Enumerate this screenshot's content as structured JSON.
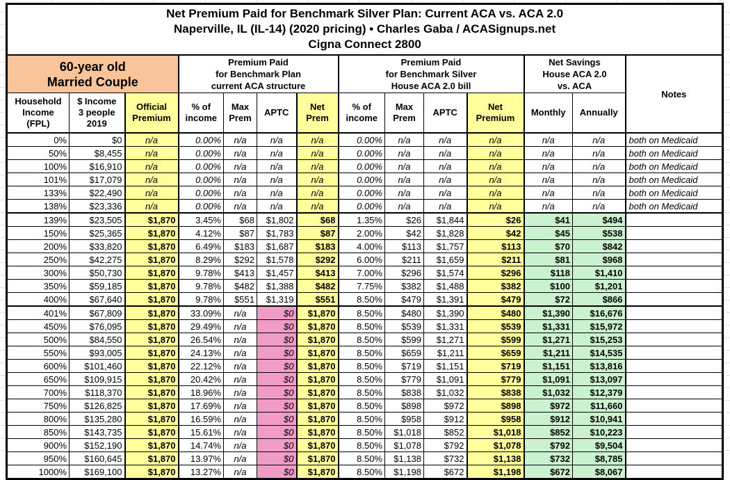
{
  "title": {
    "line1": "Net Premium Paid for Benchmark Silver Plan: Current ACA vs. ACA 2.0",
    "line2": "Naperville, IL (IL-14) (2020 pricing) • Charles Gaba / ACASignups.net",
    "line3": "Cigna Connect 2800"
  },
  "header": {
    "subject": "60-year old\nMarried Couple",
    "groups": [
      {
        "label": "Premium Paid\nfor Benchmark Plan\ncurrent ACA structure"
      },
      {
        "label": "Premium Paid\nfor Benchmark Silver\nHouse ACA 2.0 bill"
      },
      {
        "label": "Net Savings\nHouse ACA 2.0\nvs. ACA"
      }
    ],
    "notes_label": "Notes",
    "columns": [
      "Household\nIncome\n(FPL)",
      "$ Income\n3 people\n2019",
      "Official\nPremium",
      "% of\nincome",
      "Max\nPrem",
      "APTC",
      "Net\nPrem",
      "% of\nincome",
      "Max\nPrem",
      "APTC",
      "Net\nPremium",
      "Monthly",
      "Annually"
    ]
  },
  "colors": {
    "subject_orange": "#F9C499",
    "highlight_yellow": "#FFFF9C",
    "savings_green": "#CBF2CE",
    "zero_aptc_pink": "#F19CC6",
    "border_black": "#000000"
  },
  "rows": [
    {
      "section": "medicaid",
      "cells": [
        "0%",
        "$0",
        "n/a",
        "0.00%",
        "n/a",
        "n/a",
        "n/a",
        "0.00%",
        "n/a",
        "n/a",
        "n/a",
        "n/a",
        "n/a",
        "both on Medicaid"
      ]
    },
    {
      "section": "medicaid",
      "cells": [
        "50%",
        "$8,455",
        "n/a",
        "0.00%",
        "n/a",
        "n/a",
        "n/a",
        "0.00%",
        "n/a",
        "n/a",
        "n/a",
        "n/a",
        "n/a",
        "both on Medicaid"
      ]
    },
    {
      "section": "medicaid",
      "cells": [
        "100%",
        "$16,910",
        "n/a",
        "0.00%",
        "n/a",
        "n/a",
        "n/a",
        "0.00%",
        "n/a",
        "n/a",
        "n/a",
        "n/a",
        "n/a",
        "both on Medicaid"
      ]
    },
    {
      "section": "medicaid",
      "cells": [
        "101%",
        "$17,079",
        "n/a",
        "0.00%",
        "n/a",
        "n/a",
        "n/a",
        "0.00%",
        "n/a",
        "n/a",
        "n/a",
        "n/a",
        "n/a",
        "both on Medicaid"
      ]
    },
    {
      "section": "medicaid",
      "cells": [
        "133%",
        "$22,490",
        "n/a",
        "0.00%",
        "n/a",
        "n/a",
        "n/a",
        "0.00%",
        "n/a",
        "n/a",
        "n/a",
        "n/a",
        "n/a",
        "both on Medicaid"
      ]
    },
    {
      "section": "medicaid",
      "cells": [
        "138%",
        "$23,336",
        "n/a",
        "0.00%",
        "n/a",
        "n/a",
        "n/a",
        "0.00%",
        "n/a",
        "n/a",
        "n/a",
        "n/a",
        "n/a",
        "both on Medicaid"
      ]
    },
    {
      "section": "subsidized",
      "cells": [
        "139%",
        "$23,505",
        "$1,870",
        "3.45%",
        "$68",
        "$1,802",
        "$68",
        "1.35%",
        "$26",
        "$1,844",
        "$26",
        "$41",
        "$494",
        ""
      ]
    },
    {
      "section": "subsidized",
      "cells": [
        "150%",
        "$25,365",
        "$1,870",
        "4.12%",
        "$87",
        "$1,783",
        "$87",
        "2.00%",
        "$42",
        "$1,828",
        "$42",
        "$45",
        "$538",
        ""
      ]
    },
    {
      "section": "subsidized",
      "cells": [
        "200%",
        "$33,820",
        "$1,870",
        "6.49%",
        "$183",
        "$1,687",
        "$183",
        "4.00%",
        "$113",
        "$1,757",
        "$113",
        "$70",
        "$842",
        ""
      ]
    },
    {
      "section": "subsidized",
      "cells": [
        "250%",
        "$42,275",
        "$1,870",
        "8.29%",
        "$292",
        "$1,578",
        "$292",
        "6.00%",
        "$211",
        "$1,659",
        "$211",
        "$81",
        "$968",
        ""
      ]
    },
    {
      "section": "subsidized",
      "cells": [
        "300%",
        "$50,730",
        "$1,870",
        "9.78%",
        "$413",
        "$1,457",
        "$413",
        "7.00%",
        "$296",
        "$1,574",
        "$296",
        "$118",
        "$1,410",
        ""
      ]
    },
    {
      "section": "subsidized",
      "cells": [
        "350%",
        "$59,185",
        "$1,870",
        "9.78%",
        "$482",
        "$1,388",
        "$482",
        "7.75%",
        "$382",
        "$1,488",
        "$382",
        "$100",
        "$1,201",
        ""
      ]
    },
    {
      "section": "subsidized",
      "cells": [
        "400%",
        "$67,640",
        "$1,870",
        "9.78%",
        "$551",
        "$1,319",
        "$551",
        "8.50%",
        "$479",
        "$1,391",
        "$479",
        "$72",
        "$866",
        ""
      ]
    },
    {
      "section": "unsubsidized",
      "cells": [
        "401%",
        "$67,809",
        "$1,870",
        "33.09%",
        "n/a",
        "$0",
        "$1,870",
        "8.50%",
        "$480",
        "$1,390",
        "$480",
        "$1,390",
        "$16,676",
        ""
      ]
    },
    {
      "section": "unsubsidized",
      "cells": [
        "450%",
        "$76,095",
        "$1,870",
        "29.49%",
        "n/a",
        "$0",
        "$1,870",
        "8.50%",
        "$539",
        "$1,331",
        "$539",
        "$1,331",
        "$15,972",
        ""
      ]
    },
    {
      "section": "unsubsidized",
      "cells": [
        "500%",
        "$84,550",
        "$1,870",
        "26.54%",
        "n/a",
        "$0",
        "$1,870",
        "8.50%",
        "$599",
        "$1,271",
        "$599",
        "$1,271",
        "$15,253",
        ""
      ]
    },
    {
      "section": "unsubsidized",
      "cells": [
        "550%",
        "$93,005",
        "$1,870",
        "24.13%",
        "n/a",
        "$0",
        "$1,870",
        "8.50%",
        "$659",
        "$1,211",
        "$659",
        "$1,211",
        "$14,535",
        ""
      ]
    },
    {
      "section": "unsubsidized",
      "cells": [
        "600%",
        "$101,460",
        "$1,870",
        "22.12%",
        "n/a",
        "$0",
        "$1,870",
        "8.50%",
        "$719",
        "$1,151",
        "$719",
        "$1,151",
        "$13,816",
        ""
      ]
    },
    {
      "section": "unsubsidized",
      "cells": [
        "650%",
        "$109,915",
        "$1,870",
        "20.42%",
        "n/a",
        "$0",
        "$1,870",
        "8.50%",
        "$779",
        "$1,091",
        "$779",
        "$1,091",
        "$13,097",
        ""
      ]
    },
    {
      "section": "unsubsidized",
      "cells": [
        "700%",
        "$118,370",
        "$1,870",
        "18.96%",
        "n/a",
        "$0",
        "$1,870",
        "8.50%",
        "$838",
        "$1,032",
        "$838",
        "$1,032",
        "$12,379",
        ""
      ]
    },
    {
      "section": "unsubsidized",
      "cells": [
        "750%",
        "$126,825",
        "$1,870",
        "17.69%",
        "n/a",
        "$0",
        "$1,870",
        "8.50%",
        "$898",
        "$972",
        "$898",
        "$972",
        "$11,660",
        ""
      ]
    },
    {
      "section": "unsubsidized",
      "cells": [
        "800%",
        "$135,280",
        "$1,870",
        "16.59%",
        "n/a",
        "$0",
        "$1,870",
        "8.50%",
        "$958",
        "$912",
        "$958",
        "$912",
        "$10,941",
        ""
      ]
    },
    {
      "section": "unsubsidized",
      "cells": [
        "850%",
        "$143,735",
        "$1,870",
        "15.61%",
        "n/a",
        "$0",
        "$1,870",
        "8.50%",
        "$1,018",
        "$852",
        "$1,018",
        "$852",
        "$10,223",
        ""
      ]
    },
    {
      "section": "unsubsidized",
      "cells": [
        "900%",
        "$152,190",
        "$1,870",
        "14.74%",
        "n/a",
        "$0",
        "$1,870",
        "8.50%",
        "$1,078",
        "$792",
        "$1,078",
        "$792",
        "$9,504",
        ""
      ]
    },
    {
      "section": "unsubsidized",
      "cells": [
        "950%",
        "$160,645",
        "$1,870",
        "13.97%",
        "n/a",
        "$0",
        "$1,870",
        "8.50%",
        "$1,138",
        "$732",
        "$1,138",
        "$732",
        "$8,785",
        ""
      ]
    },
    {
      "section": "unsubsidized",
      "cells": [
        "1000%",
        "$169,100",
        "$1,870",
        "13.27%",
        "n/a",
        "$0",
        "$1,870",
        "8.50%",
        "$1,198",
        "$672",
        "$1,198",
        "$672",
        "$8,067",
        ""
      ]
    }
  ]
}
